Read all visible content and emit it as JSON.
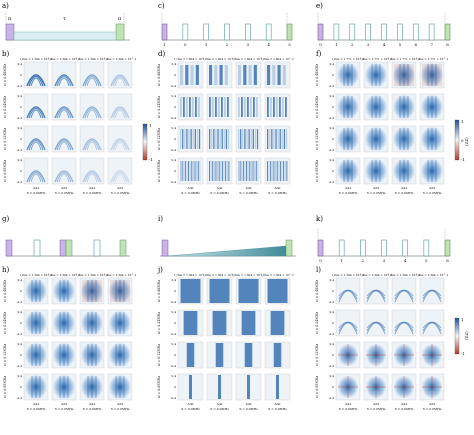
{
  "figure": {
    "panel_labels": {
      "a": "a)",
      "b": "b)",
      "c": "c)",
      "d": "d)",
      "e": "e)",
      "f": "f)",
      "g": "g)",
      "h": "h)",
      "i": "i)",
      "j": "j)",
      "k": "k)",
      "l": "l)"
    },
    "seq_a": {
      "pulse_left_top": "π",
      "pulse_left_bottom": "2",
      "delay": "τ",
      "pulse_right_top": "π",
      "pulse_right_bottom": "2"
    },
    "seq_c": {
      "pulse_ends": "π/2",
      "inner": "π",
      "ticks": [
        "1",
        "0",
        "1",
        "2",
        "3",
        "4",
        "5"
      ]
    },
    "seq_e": {
      "pulse_ends": "π/2",
      "inner": "π",
      "ticks": [
        "0",
        "1",
        "2",
        "3",
        "4",
        "5",
        "6",
        "7",
        "8"
      ]
    },
    "seq_g": {
      "ends": "π/2",
      "middle": [
        "π",
        "π/2",
        "π"
      ]
    },
    "seq_i": {
      "ends": "π/2"
    },
    "seq_k": {
      "ends": "π/2",
      "inner": "π",
      "ticks": [
        "0",
        "1",
        "2",
        "3",
        "4",
        "5",
        "6"
      ]
    },
    "grid_b": {
      "row_labels": [
        "ω = 0.48MHz",
        "ω = 0.24MHz",
        "ω = 0.12MHz",
        "ω = 0.05MHz"
      ],
      "header": [
        "f_rms = 1.304 × 10^-1",
        "f_rms = 1.304 × 10^-1",
        "f_rms = 1.304 × 10^-1",
        "f_rms = 1.304 × 10^-1"
      ],
      "x_label": "Δ/Ω",
      "bottom_labels": [
        "X = 0.0MHz",
        "X = 0.0MHz",
        "X = 0.0MHz",
        "X = 0.0MHz"
      ]
    },
    "grid_d": {
      "row_labels": [
        "ω = 0.48MHz",
        "ω = 0.24MHz",
        "ω = 0.12MHz",
        "ω = 0.05MHz"
      ],
      "header": [
        "f_rms = 1.604 × 10^-1",
        "f_rms = 1.604 × 10^-1",
        "f_rms = 1.604 × 10^-1",
        "f_rms = 1.604 × 10^-1"
      ],
      "x_label": "Δ/Ω",
      "bottom_labels": [
        "X = 0.0MHz",
        "X = 0.0MHz",
        "X = 0.0MHz",
        "X = 0.0MHz"
      ]
    },
    "grid_f": {
      "row_labels": [
        "ω = 0.48MHz",
        "ω = 0.24MHz",
        "ω = 0.12MHz",
        "ω = 0.05MHz"
      ],
      "header": [
        "f_rms = 1.771 × 10^-1",
        "f_rms = 1.771 × 10^-1",
        "f_rms = 1.771 × 10^-1",
        "f_rms = 1.771 × 10^-1"
      ],
      "x_label": "Δ/Ω",
      "bottom_labels": [
        "X = 0.0MHz",
        "X = 0.0MHz",
        "X = 0.0MHz",
        "X = 0.0MHz"
      ]
    },
    "grid_h": {
      "row_labels": [
        "ω = 0.48MHz",
        "ω = 0.24MHz",
        "ω = 0.12MHz",
        "ω = 0.05MHz"
      ],
      "header": [
        "f_rms = 1.304 × 10^-1",
        "f_rms = 1.304 × 10^-1",
        "f_rms = 1.304 × 10^-1",
        "f_rms = 1.304 × 10^-1"
      ],
      "x_label": "Δ/Ω",
      "bottom_labels": [
        "X = 0.0MHz",
        "X = 0.0MHz",
        "X = 0.0MHz",
        "X = 0.0MHz"
      ]
    },
    "grid_j": {
      "row_labels": [
        "ω = 0.48MHz",
        "ω = 0.24MHz",
        "ω = 0.12MHz",
        "ω = 0.05MHz"
      ],
      "header": [
        "f_rms = 1.304 × 10^-1",
        "f_rms = 1.304 × 10^-1",
        "f_rms = 1.304 × 10^-1",
        "f_rms = 1.304 × 10^-1"
      ],
      "x_label": "Δ/Ω",
      "bottom_labels": [
        "X = 0.0MHz",
        "X = 0.0MHz",
        "X = 0.0MHz",
        "X = 0.0MHz"
      ]
    },
    "grid_l": {
      "row_labels": [
        "ω = 0.48MHz",
        "ω = 0.24MHz",
        "ω = 0.12MHz",
        "ω = 0.05MHz"
      ],
      "header": [
        "f_rms = 1.304 × 10^-1",
        "f_rms = 1.304 × 10^-1",
        "f_rms = 1.304 × 10^-1",
        "f_rms = 1.304 × 10^-1"
      ],
      "x_label": "Δ/Ω",
      "bottom_labels": [
        "X = 0.0MHz",
        "X = 0.0MHz",
        "X = 0.0MHz",
        "X = 0.0MHz"
      ]
    },
    "y_ticks": [
      "0.4",
      "0.2",
      "0",
      "-0.2",
      "-0.4"
    ],
    "colorbar": {
      "ticks": [
        "1",
        "0",
        "-1"
      ],
      "label": "⟨ZZ⟩"
    },
    "colors": {
      "pulse_purple": "#c9b3e6",
      "pulse_green": "#bfe3b5",
      "pulse_teal": "#9fd7d1",
      "ramp_teal": "#4f9aa6",
      "heat_blue": "#1f5fa8",
      "heat_red": "#c0392b",
      "cell_bg": "#eef3f8"
    }
  }
}
